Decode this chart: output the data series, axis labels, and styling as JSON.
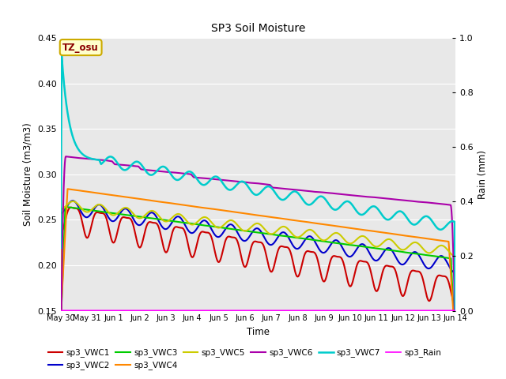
{
  "title": "SP3 Soil Moisture",
  "xlabel": "Time",
  "ylabel_left": "Soil Moisture (m3/m3)",
  "ylabel_right": "Rain (mm)",
  "ylim_left": [
    0.15,
    0.45
  ],
  "ylim_right": [
    0.0,
    1.0
  ],
  "background_color": "#e8e8e8",
  "figure_background": "#ffffff",
  "tz_label": "TZ_osu",
  "tz_bg": "#ffffcc",
  "tz_border": "#ccaa00",
  "tz_text_color": "#8b0000",
  "series": {
    "sp3_VWC1": {
      "color": "#cc0000",
      "lw": 1.5
    },
    "sp3_VWC2": {
      "color": "#0000cc",
      "lw": 1.5
    },
    "sp3_VWC3": {
      "color": "#00cc00",
      "lw": 1.5
    },
    "sp3_VWC4": {
      "color": "#ff8800",
      "lw": 1.5
    },
    "sp3_VWC5": {
      "color": "#cccc00",
      "lw": 1.5
    },
    "sp3_VWC6": {
      "color": "#aa00aa",
      "lw": 1.5
    },
    "sp3_VWC7": {
      "color": "#00cccc",
      "lw": 1.8
    },
    "sp3_Rain": {
      "color": "#ff00ff",
      "lw": 1.2
    }
  },
  "tick_labels": [
    "May 30",
    "May 31",
    "Jun 1",
    "Jun 2",
    "Jun 3",
    "Jun 4",
    "Jun 5",
    "Jun 6",
    "Jun 7",
    "Jun 8",
    "Jun 9",
    "Jun 10",
    "Jun 11",
    "Jun 12",
    "Jun 13",
    "Jun 14"
  ]
}
